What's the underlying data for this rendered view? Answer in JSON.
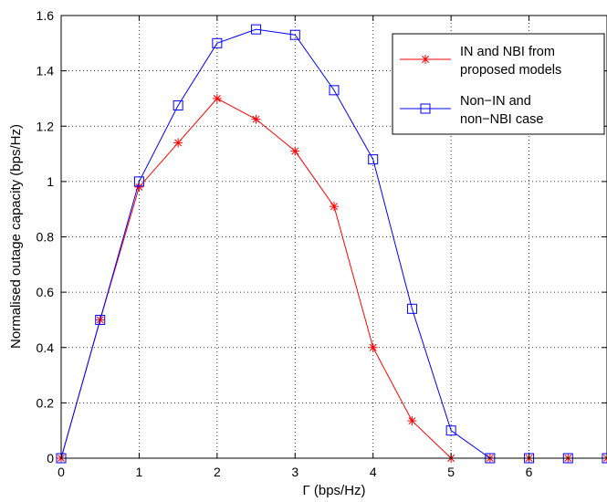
{
  "chart_data": {
    "type": "line",
    "xlabel": "Γ (bps/Hz)",
    "ylabel": "Normalised outage capacity (bps/Hz)",
    "xlim": [
      0,
      7
    ],
    "ylim": [
      0,
      1.6
    ],
    "xticks": [
      0,
      1,
      2,
      3,
      4,
      5,
      6
    ],
    "yticks": [
      0,
      0.2,
      0.4,
      0.6,
      0.8,
      1,
      1.2,
      1.4,
      1.6
    ],
    "ytick_labels": [
      "0",
      "0.2",
      "0.4",
      "0.6",
      "0.8",
      "1",
      "1.2",
      "1.4",
      "1.6"
    ],
    "grid": true,
    "legend_position": "top-right",
    "x": [
      0,
      0.5,
      1,
      1.5,
      2,
      2.5,
      3,
      3.5,
      4,
      4.5,
      5,
      5.5,
      6,
      6.5,
      7
    ],
    "series": [
      {
        "name": "IN and NBI from proposed models",
        "legend_lines": [
          "IN and NBI from",
          "proposed models"
        ],
        "color": "#ff0000",
        "marker": "asterisk",
        "values": [
          0,
          0.5,
          0.98,
          1.14,
          1.3,
          1.225,
          1.11,
          0.91,
          0.4,
          0.135,
          0,
          0,
          0,
          0,
          0
        ]
      },
      {
        "name": "Non−IN and non−NBI case",
        "legend_lines": [
          "Non−IN and",
          "non−NBI case"
        ],
        "color": "#0000ff",
        "marker": "square",
        "values": [
          0,
          0.5,
          1.0,
          1.275,
          1.5,
          1.55,
          1.53,
          1.33,
          1.08,
          0.54,
          0.1,
          0,
          0,
          0,
          0
        ]
      }
    ]
  }
}
